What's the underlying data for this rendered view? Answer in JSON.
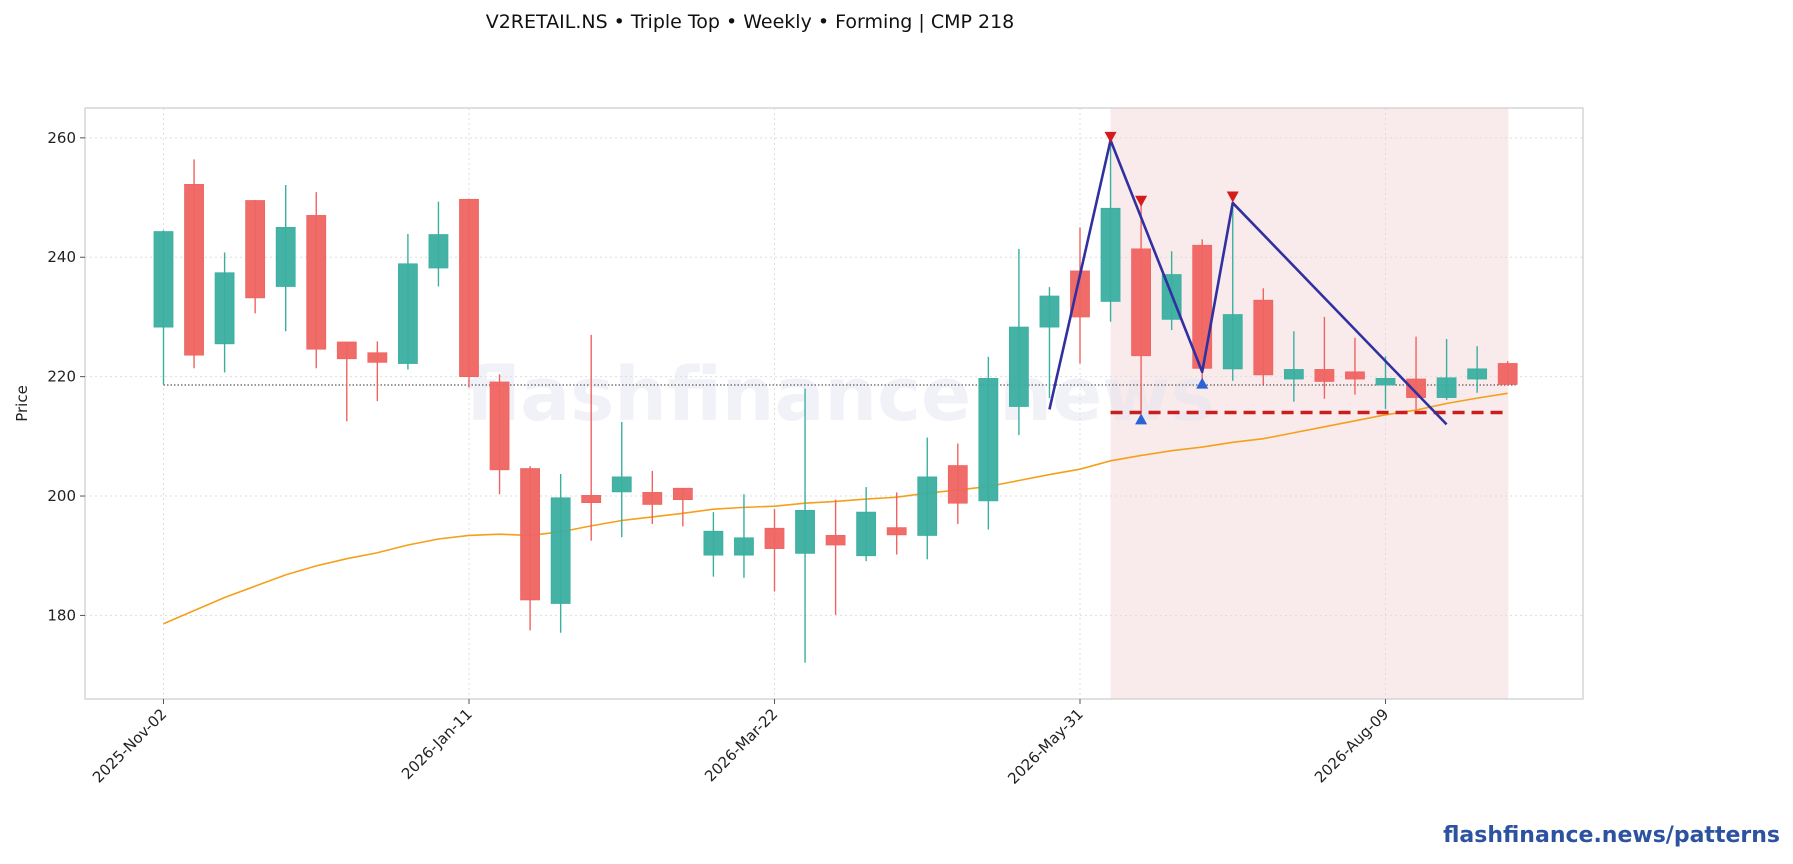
{
  "title": "V2RETAIL.NS  •  Triple Top  •  Weekly  •  Forming  |  CMP 218",
  "footer": "flashfinance.news/patterns",
  "watermark": "flashfinance.news",
  "colors": {
    "up": "#3aafa0",
    "down": "#ef6461",
    "ema": "#f5a01a",
    "pattern_line": "#3030a0",
    "support": "#c81e1e",
    "peak_marker": "#d41c1c",
    "trough_marker": "#2c62d8",
    "zone_fill": "#f8e8e8",
    "footer": "#2c52a0"
  },
  "chart_data": {
    "type": "candlestick",
    "title": "V2RETAIL.NS  •  Triple Top  •  Weekly  •  Forming  |  CMP 218",
    "ylabel": "Price",
    "xlabel": "",
    "ylim": [
      166,
      265
    ],
    "yticks": [
      180,
      200,
      220,
      240,
      260
    ],
    "xtick_labels": [
      "2025-Nov-02",
      "2026-Jan-11",
      "2026-Mar-22",
      "2026-May-31",
      "2026-Aug-09"
    ],
    "grid": true,
    "candles": [
      {
        "date": "2025-Nov-02",
        "o": 228.3,
        "h": 244.5,
        "l": 218.7,
        "c": 244.3
      },
      {
        "date": "2025-Nov-09",
        "o": 252.2,
        "h": 256.4,
        "l": 221.4,
        "c": 223.6
      },
      {
        "date": "2025-Nov-16",
        "o": 225.5,
        "h": 240.8,
        "l": 220.7,
        "c": 237.4
      },
      {
        "date": "2025-Nov-23",
        "o": 249.5,
        "h": 249.6,
        "l": 230.6,
        "c": 233.2
      },
      {
        "date": "2025-Nov-30",
        "o": 235.1,
        "h": 252.1,
        "l": 227.6,
        "c": 245.0
      },
      {
        "date": "2025-Dec-07",
        "o": 247.0,
        "h": 250.9,
        "l": 221.4,
        "c": 224.6
      },
      {
        "date": "2025-Dec-14",
        "o": 225.8,
        "h": 225.8,
        "l": 212.5,
        "c": 223.0
      },
      {
        "date": "2025-Dec-21",
        "o": 224.0,
        "h": 225.9,
        "l": 215.9,
        "c": 222.4
      },
      {
        "date": "2025-Dec-28",
        "o": 222.2,
        "h": 243.9,
        "l": 221.2,
        "c": 238.9
      },
      {
        "date": "2026-Jan-04",
        "o": 238.2,
        "h": 249.3,
        "l": 235.1,
        "c": 243.8
      },
      {
        "date": "2026-Jan-11",
        "o": 249.7,
        "h": 249.7,
        "l": 218.2,
        "c": 220.0
      },
      {
        "date": "2026-Jan-18",
        "o": 219.1,
        "h": 220.4,
        "l": 200.3,
        "c": 204.4
      },
      {
        "date": "2026-Jan-25",
        "o": 204.6,
        "h": 205.0,
        "l": 177.5,
        "c": 182.6
      },
      {
        "date": "2026-Feb-01",
        "o": 182.0,
        "h": 203.7,
        "l": 177.1,
        "c": 199.7
      },
      {
        "date": "2026-Feb-08",
        "o": 200.1,
        "h": 227.0,
        "l": 192.5,
        "c": 198.9
      },
      {
        "date": "2026-Feb-15",
        "o": 200.7,
        "h": 212.4,
        "l": 193.1,
        "c": 203.2
      },
      {
        "date": "2026-Feb-22",
        "o": 200.6,
        "h": 204.2,
        "l": 195.3,
        "c": 198.6
      },
      {
        "date": "2026-Mar-01",
        "o": 201.3,
        "h": 201.3,
        "l": 194.9,
        "c": 199.4
      },
      {
        "date": "2026-Mar-08",
        "o": 190.1,
        "h": 197.3,
        "l": 186.5,
        "c": 194.1
      },
      {
        "date": "2026-Mar-15",
        "o": 190.1,
        "h": 200.3,
        "l": 186.3,
        "c": 193.0
      },
      {
        "date": "2026-Mar-22",
        "o": 194.6,
        "h": 197.8,
        "l": 184.0,
        "c": 191.2
      },
      {
        "date": "2026-Mar-29",
        "o": 190.4,
        "h": 218.0,
        "l": 172.1,
        "c": 197.6
      },
      {
        "date": "2026-Apr-05",
        "o": 193.4,
        "h": 199.4,
        "l": 180.1,
        "c": 191.8
      },
      {
        "date": "2026-Apr-12",
        "o": 190.0,
        "h": 201.5,
        "l": 189.1,
        "c": 197.3
      },
      {
        "date": "2026-Apr-19",
        "o": 194.7,
        "h": 200.6,
        "l": 190.2,
        "c": 193.5
      },
      {
        "date": "2026-Apr-26",
        "o": 193.4,
        "h": 209.8,
        "l": 189.4,
        "c": 203.2
      },
      {
        "date": "2026-May-03",
        "o": 205.1,
        "h": 208.8,
        "l": 195.3,
        "c": 198.8
      },
      {
        "date": "2026-May-10",
        "o": 199.2,
        "h": 223.3,
        "l": 194.4,
        "c": 219.7
      },
      {
        "date": "2026-May-17",
        "o": 215.0,
        "h": 241.4,
        "l": 210.2,
        "c": 228.3
      },
      {
        "date": "2026-May-24",
        "o": 228.3,
        "h": 235.0,
        "l": 216.4,
        "c": 233.5
      },
      {
        "date": "2026-May-31",
        "o": 237.7,
        "h": 245.0,
        "l": 222.2,
        "c": 230.0
      },
      {
        "date": "2026-Jun-07",
        "o": 232.6,
        "h": 258.9,
        "l": 229.2,
        "c": 248.2
      },
      {
        "date": "2026-Jun-14",
        "o": 241.4,
        "h": 249.0,
        "l": 214.0,
        "c": 223.5
      },
      {
        "date": "2026-Jun-21",
        "o": 229.6,
        "h": 241.0,
        "l": 227.8,
        "c": 237.1
      },
      {
        "date": "2026-Jun-28",
        "o": 242.0,
        "h": 243.0,
        "l": 219.0,
        "c": 221.4
      },
      {
        "date": "2026-Jul-05",
        "o": 221.3,
        "h": 248.6,
        "l": 219.3,
        "c": 230.4
      },
      {
        "date": "2026-Jul-12",
        "o": 232.8,
        "h": 234.8,
        "l": 218.7,
        "c": 220.3
      },
      {
        "date": "2026-Jul-19",
        "o": 219.6,
        "h": 227.6,
        "l": 215.8,
        "c": 221.2
      },
      {
        "date": "2026-Jul-26",
        "o": 221.2,
        "h": 230.0,
        "l": 216.3,
        "c": 219.2
      },
      {
        "date": "2026-Aug-02",
        "o": 220.8,
        "h": 226.5,
        "l": 217.0,
        "c": 219.6
      },
      {
        "date": "2026-Aug-09",
        "o": 218.6,
        "h": 223.4,
        "l": 214.6,
        "c": 219.7
      },
      {
        "date": "2026-Aug-16",
        "o": 219.6,
        "h": 226.7,
        "l": 214.5,
        "c": 216.5
      },
      {
        "date": "2026-Aug-23",
        "o": 216.5,
        "h": 226.3,
        "l": 216.1,
        "c": 219.8
      },
      {
        "date": "2026-Aug-30",
        "o": 219.6,
        "h": 225.1,
        "l": 217.3,
        "c": 221.3
      },
      {
        "date": "2026-Sep-06",
        "o": 222.2,
        "h": 222.6,
        "l": 218.5,
        "c": 218.7
      }
    ],
    "ema": [
      178.6,
      180.8,
      183.0,
      184.9,
      186.8,
      188.3,
      189.5,
      190.5,
      191.8,
      192.8,
      193.4,
      193.6,
      193.4,
      194.0,
      195.0,
      195.9,
      196.5,
      197.1,
      197.8,
      198.1,
      198.3,
      198.8,
      199.1,
      199.5,
      199.8,
      200.5,
      201.0,
      201.6,
      202.6,
      203.6,
      204.5,
      205.9,
      206.8,
      207.6,
      208.2,
      209.0,
      209.6,
      210.6,
      211.6,
      212.6,
      213.6,
      214.4,
      215.5,
      216.4,
      217.2
    ],
    "pattern_path": [
      {
        "date": "2026-May-24",
        "price": 214.5
      },
      {
        "date": "2026-Jun-07",
        "price": 259.6
      },
      {
        "date": "2026-Jun-28",
        "price": 220.8
      },
      {
        "date": "2026-Jul-05",
        "price": 249.1
      },
      {
        "date": "2026-Aug-23",
        "price": 212.0
      }
    ],
    "peaks": [
      {
        "date": "2026-Jun-07",
        "price": 260.0
      },
      {
        "date": "2026-Jun-14",
        "price": 249.3
      },
      {
        "date": "2026-Jul-05",
        "price": 250.0
      }
    ],
    "troughs": [
      {
        "date": "2026-Jun-14",
        "price": 213.0
      },
      {
        "date": "2026-Jun-28",
        "price": 219.0
      }
    ],
    "support_level": 214.0,
    "support_range": [
      "2026-Jun-07",
      "2026-Sep-06"
    ],
    "reference_level": 218.6,
    "reference_range": [
      "2025-Nov-02",
      "2026-Sep-06"
    ],
    "pattern_zone": [
      "2026-Jun-07",
      "2026-Sep-06"
    ]
  }
}
